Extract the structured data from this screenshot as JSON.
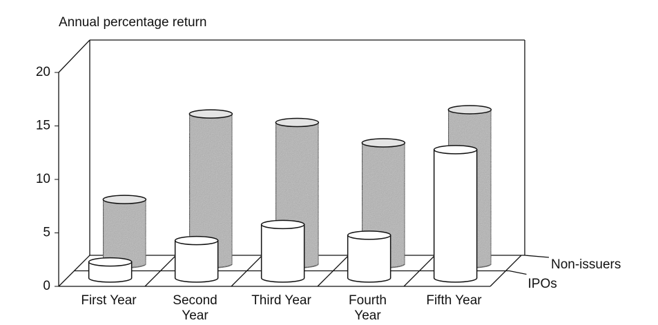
{
  "chart_data": {
    "type": "cylinder3d",
    "y_label": "Annual percentage return",
    "categories": [
      "First Year",
      "Second Year",
      "Third Year",
      "Fourth Year",
      "Fifth Year"
    ],
    "series": [
      {
        "name": "IPOs",
        "color": "#ffffff",
        "values": [
          1.5,
          3.5,
          5,
          4,
          12
        ]
      },
      {
        "name": "Non-issuers",
        "color": "#b4b4b4",
        "values": [
          6,
          14,
          13.2,
          11.3,
          14.4
        ]
      }
    ],
    "ylim": [
      0,
      20
    ],
    "yticks": [
      0,
      5,
      10,
      15,
      20
    ]
  }
}
